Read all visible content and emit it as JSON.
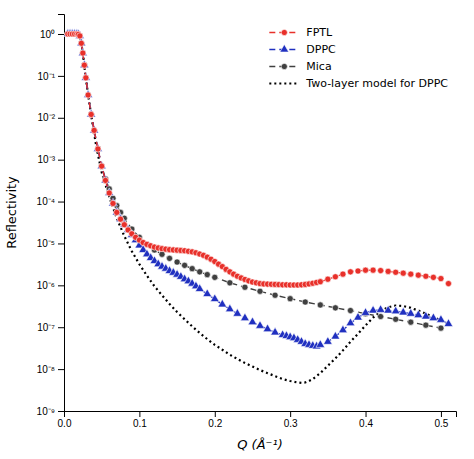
{
  "chart_data": {
    "type": "line",
    "xlabel": "Q (Å⁻¹)",
    "ylabel": "Reflectivity",
    "xlim": [
      0.0,
      0.52
    ],
    "ylim": [
      1e-09,
      3.0
    ],
    "xticks": [
      {
        "value": 0,
        "label": "0.0"
      },
      0.1,
      0.2,
      0.3,
      0.4,
      0.5
    ],
    "yticks": [
      {
        "value": 1e-09,
        "label": "10⁻⁹"
      },
      {
        "value": 1e-08,
        "label": "10⁻⁸"
      },
      {
        "value": 1e-07,
        "label": "10⁻⁷"
      },
      {
        "value": 1e-06,
        "label": "10⁻⁶"
      },
      {
        "value": 1e-05,
        "label": "10⁻⁵"
      },
      {
        "value": 0.0001,
        "label": "10⁻⁴"
      },
      {
        "value": 0.001,
        "label": "10⁻³"
      },
      {
        "value": 0.01,
        "label": "10⁻²"
      },
      {
        "value": 0.1,
        "label": "10⁻¹"
      },
      {
        "value": 1,
        "label": "10⁰"
      }
    ],
    "log": "y",
    "grid": false,
    "legend": "upper right",
    "series": [
      {
        "name": "FPTL",
        "color": "#e8302a",
        "line_style": "dashed",
        "marker": "circle",
        "x": [
          0.005,
          0.008,
          0.011,
          0.014,
          0.017,
          0.019,
          0.021,
          0.023,
          0.025,
          0.027,
          0.029,
          0.032,
          0.036,
          0.04,
          0.045,
          0.05,
          0.055,
          0.06,
          0.065,
          0.07,
          0.075,
          0.08,
          0.085,
          0.09,
          0.095,
          0.1,
          0.105,
          0.11,
          0.115,
          0.12,
          0.125,
          0.13,
          0.135,
          0.14,
          0.145,
          0.15,
          0.155,
          0.16,
          0.165,
          0.17,
          0.175,
          0.18,
          0.185,
          0.19,
          0.195,
          0.2,
          0.205,
          0.21,
          0.215,
          0.22,
          0.225,
          0.23,
          0.235,
          0.24,
          0.245,
          0.25,
          0.255,
          0.26,
          0.265,
          0.27,
          0.275,
          0.28,
          0.285,
          0.29,
          0.295,
          0.3,
          0.305,
          0.31,
          0.315,
          0.32,
          0.325,
          0.33,
          0.335,
          0.34,
          0.35,
          0.36,
          0.37,
          0.38,
          0.39,
          0.4,
          0.41,
          0.42,
          0.43,
          0.44,
          0.45,
          0.46,
          0.47,
          0.48,
          0.49,
          0.5,
          0.51
        ],
        "values": [
          1.0,
          1.0,
          1.0,
          1.0,
          1.0,
          0.98,
          0.9,
          0.6,
          0.35,
          0.18,
          0.09,
          0.035,
          0.012,
          0.005,
          0.0018,
          0.0007,
          0.00032,
          0.00016,
          9e-05,
          5.5e-05,
          3.8e-05,
          2.8e-05,
          2.1e-05,
          1.7e-05,
          1.4e-05,
          1.2e-05,
          1.05e-05,
          9.5e-06,
          8.8e-06,
          8.2e-06,
          7.8e-06,
          7.5e-06,
          7.3e-06,
          7.1e-06,
          7e-06,
          6.9e-06,
          6.8e-06,
          6.7e-06,
          6.5e-06,
          6.3e-06,
          6e-06,
          5.6e-06,
          5.2e-06,
          4.7e-06,
          4.2e-06,
          3.7e-06,
          3.2e-06,
          2.8e-06,
          2.4e-06,
          2.1e-06,
          1.85e-06,
          1.65e-06,
          1.5e-06,
          1.38e-06,
          1.28e-06,
          1.2e-06,
          1.15e-06,
          1.1e-06,
          1.08e-06,
          1.07e-06,
          1.06e-06,
          1.05e-06,
          1.04e-06,
          1.03e-06,
          1.03e-06,
          1.02e-06,
          1.02e-06,
          1.02e-06,
          1.03e-06,
          1.05e-06,
          1.08e-06,
          1.12e-06,
          1.17e-06,
          1.22e-06,
          1.4e-06,
          1.6e-06,
          1.85e-06,
          2.1e-06,
          2.2e-06,
          2.3e-06,
          2.3e-06,
          2.25e-06,
          2.15e-06,
          2.05e-06,
          1.95e-06,
          1.85e-06,
          1.75e-06,
          1.65e-06,
          1.55e-06,
          1.45e-06,
          1.1e-06
        ]
      },
      {
        "name": "DPPC",
        "color": "#2030c0",
        "line_style": "dashed",
        "marker": "triangle",
        "x": [
          0.005,
          0.008,
          0.011,
          0.014,
          0.017,
          0.019,
          0.021,
          0.023,
          0.025,
          0.027,
          0.029,
          0.032,
          0.036,
          0.04,
          0.045,
          0.05,
          0.055,
          0.06,
          0.065,
          0.07,
          0.075,
          0.08,
          0.085,
          0.09,
          0.095,
          0.1,
          0.105,
          0.11,
          0.115,
          0.12,
          0.125,
          0.13,
          0.135,
          0.14,
          0.145,
          0.15,
          0.155,
          0.16,
          0.165,
          0.17,
          0.175,
          0.18,
          0.19,
          0.2,
          0.21,
          0.22,
          0.23,
          0.24,
          0.25,
          0.26,
          0.27,
          0.28,
          0.29,
          0.295,
          0.3,
          0.305,
          0.31,
          0.315,
          0.32,
          0.325,
          0.33,
          0.335,
          0.34,
          0.35,
          0.36,
          0.37,
          0.38,
          0.39,
          0.4,
          0.41,
          0.42,
          0.43,
          0.44,
          0.45,
          0.46,
          0.47,
          0.48,
          0.49,
          0.5,
          0.51
        ],
        "values": [
          1.0,
          1.0,
          1.0,
          1.0,
          1.0,
          0.98,
          0.9,
          0.6,
          0.35,
          0.18,
          0.09,
          0.035,
          0.012,
          0.005,
          0.0018,
          0.0007,
          0.00032,
          0.00016,
          9e-05,
          5.5e-05,
          3.8e-05,
          2.8e-05,
          2.1e-05,
          1.6e-05,
          1.2e-05,
          9e-06,
          7e-06,
          5.5e-06,
          4.5e-06,
          3.8e-06,
          3.2e-06,
          2.8e-06,
          2.5e-06,
          2.2e-06,
          2e-06,
          1.8e-06,
          1.6e-06,
          1.4e-06,
          1.25e-06,
          1.1e-06,
          9.5e-07,
          8.2e-07,
          6.2e-07,
          4.7e-07,
          3.5e-07,
          2.7e-07,
          2.1e-07,
          1.65e-07,
          1.32e-07,
          1.08e-07,
          9e-08,
          7.5e-08,
          6.5e-08,
          6.2e-08,
          5.8e-08,
          5.5e-08,
          5e-08,
          4.5e-08,
          4e-08,
          3.8e-08,
          3.6e-08,
          3.5e-08,
          3.8e-08,
          4.5e-08,
          6e-08,
          8.5e-08,
          1.25e-07,
          1.7e-07,
          2.2e-07,
          2.5e-07,
          2.6e-07,
          2.5e-07,
          2.4e-07,
          2.25e-07,
          2.1e-07,
          1.95e-07,
          1.8e-07,
          1.65e-07,
          1.5e-07,
          1.2e-07
        ]
      },
      {
        "name": "Mica",
        "color": "#404040",
        "line_style": "dashed",
        "marker": "circle",
        "x": [
          0.005,
          0.008,
          0.011,
          0.014,
          0.017,
          0.019,
          0.021,
          0.023,
          0.025,
          0.027,
          0.029,
          0.032,
          0.036,
          0.04,
          0.045,
          0.05,
          0.055,
          0.06,
          0.065,
          0.07,
          0.075,
          0.08,
          0.09,
          0.1,
          0.11,
          0.12,
          0.13,
          0.14,
          0.15,
          0.16,
          0.17,
          0.18,
          0.19,
          0.2,
          0.22,
          0.24,
          0.26,
          0.28,
          0.3,
          0.32,
          0.34,
          0.36,
          0.38,
          0.4,
          0.42,
          0.44,
          0.46,
          0.48,
          0.5
        ],
        "values": [
          1.0,
          1.0,
          1.0,
          1.0,
          1.0,
          0.98,
          0.9,
          0.6,
          0.35,
          0.18,
          0.09,
          0.035,
          0.012,
          0.005,
          0.0018,
          0.0007,
          0.00035,
          0.0002,
          0.00012,
          8e-05,
          5.5e-05,
          4e-05,
          2.2e-05,
          1.4e-05,
          9.5e-06,
          7e-06,
          5.5e-06,
          4.4e-06,
          3.6e-06,
          3e-06,
          2.5e-06,
          2.1e-06,
          1.8e-06,
          1.55e-06,
          1.15e-06,
          9e-07,
          7.2e-07,
          5.8e-07,
          4.8e-07,
          4e-07,
          3.4e-07,
          2.9e-07,
          2.5e-07,
          2.1e-07,
          1.8e-07,
          1.55e-07,
          1.32e-07,
          1.12e-07,
          9.5e-08
        ]
      },
      {
        "name": "Two-layer model for DPPC",
        "color": "#000000",
        "line_style": "dotted",
        "marker": "none",
        "x": [
          0.005,
          0.01,
          0.015,
          0.019,
          0.021,
          0.023,
          0.025,
          0.028,
          0.032,
          0.037,
          0.043,
          0.05,
          0.06,
          0.07,
          0.08,
          0.09,
          0.1,
          0.11,
          0.12,
          0.13,
          0.14,
          0.15,
          0.16,
          0.17,
          0.18,
          0.19,
          0.2,
          0.21,
          0.22,
          0.23,
          0.24,
          0.25,
          0.26,
          0.27,
          0.28,
          0.29,
          0.3,
          0.305,
          0.31,
          0.315,
          0.32,
          0.325,
          0.33,
          0.34,
          0.35,
          0.36,
          0.37,
          0.38,
          0.39,
          0.4,
          0.41,
          0.42,
          0.43,
          0.44,
          0.45,
          0.46,
          0.47,
          0.48,
          0.49,
          0.5,
          0.51
        ],
        "values": [
          1.0,
          1.0,
          1.0,
          0.98,
          0.9,
          0.6,
          0.35,
          0.12,
          0.035,
          0.009,
          0.002,
          0.0005,
          0.00013,
          4e-05,
          1.5e-05,
          6.5e-06,
          3.2e-06,
          1.7e-06,
          9.5e-07,
          5.8e-07,
          3.6e-07,
          2.3e-07,
          1.55e-07,
          1.05e-07,
          7.3e-08,
          5.2e-08,
          3.8e-08,
          2.9e-08,
          2.2e-08,
          1.75e-08,
          1.4e-08,
          1.15e-08,
          9.5e-09,
          8e-09,
          6.8e-09,
          5.8e-09,
          5.2e-09,
          5e-09,
          4.8e-09,
          4.7e-09,
          4.8e-09,
          5.2e-09,
          5.8e-09,
          8e-09,
          1.2e-08,
          1.8e-08,
          2.8e-08,
          4.5e-08,
          7e-08,
          1.1e-07,
          1.7e-07,
          2.4e-07,
          3e-07,
          3.3e-07,
          3.2e-07,
          2.9e-07,
          2.5e-07,
          2.1e-07,
          1.75e-07,
          1.45e-07,
          1.2e-07
        ]
      }
    ]
  }
}
